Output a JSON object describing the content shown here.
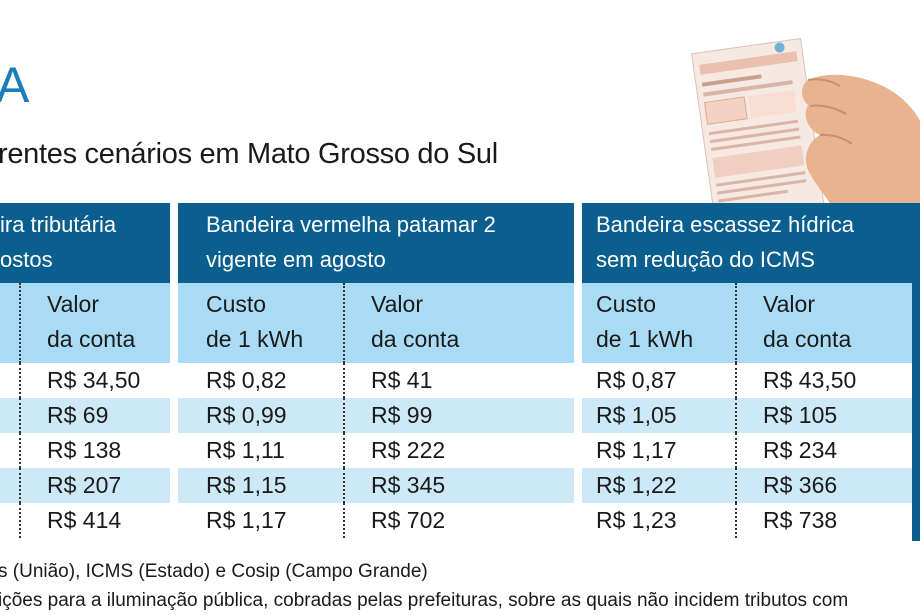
{
  "header": {
    "letter": "A",
    "subtitle": "rentes cenários em Mato Grosso do Sul"
  },
  "table": {
    "groups": [
      {
        "line1": "ira tributária",
        "line2": "ostos"
      },
      {
        "line1": "Bandeira vermelha patamar 2",
        "line2": "vigente em agosto"
      },
      {
        "line1": "Bandeira escassez hídrica",
        "line2": "sem redução do ICMS"
      }
    ],
    "subheaders": {
      "cost_line1": "Custo",
      "cost_line2": "de 1 kWh",
      "value_line1": "Valor",
      "value_line2": "da conta"
    },
    "rows": [
      {
        "g1_value": "R$ 34,50",
        "g2_cost": "R$ 0,82",
        "g2_value": "R$ 41",
        "g3_cost": "R$ 0,87",
        "g3_value": "R$ 43,50"
      },
      {
        "g1_value": "R$ 69",
        "g2_cost": "R$ 0,99",
        "g2_value": "R$ 99",
        "g3_cost": "R$ 1,05",
        "g3_value": "R$ 105"
      },
      {
        "g1_value": "R$ 138",
        "g2_cost": "R$ 1,11",
        "g2_value": "R$ 222",
        "g3_cost": "R$ 1,17",
        "g3_value": "R$ 234"
      },
      {
        "g1_value": "R$ 207",
        "g2_cost": "R$ 1,15",
        "g2_value": "R$ 345",
        "g3_cost": "R$ 1,22",
        "g3_value": "R$ 366"
      },
      {
        "g1_value": "R$ 414",
        "g2_cost": "R$ 1,17",
        "g2_value": "R$ 702",
        "g3_cost": "R$ 1,23",
        "g3_value": "R$ 738"
      }
    ]
  },
  "footnotes": {
    "line1": "s (União), ICMS (Estado) e Cosip (Campo Grande)",
    "line2": "ições para a iluminação pública, cobradas pelas prefeituras, sobre as quais não incidem tributos com"
  },
  "colors": {
    "header_bg": "#0b5f8e",
    "subheader_bg": "#a9dcf4",
    "stripe_bg": "#cde9f7",
    "accent": "#1a7fb8"
  }
}
